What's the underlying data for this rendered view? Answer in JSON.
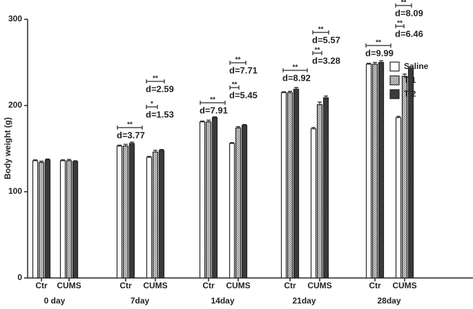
{
  "chart_data": {
    "type": "bar",
    "ylabel": "Body weight (g)",
    "categories": [
      "Ctr",
      "CUMS",
      "Ctr",
      "CUMS",
      "Ctr",
      "CUMS",
      "Ctr",
      "CUMS",
      "Ctr",
      "CUMS"
    ],
    "groups": [
      "0 day",
      "7day",
      "14day",
      "21day",
      "28day"
    ],
    "series": [
      {
        "name": "Saline",
        "color": "#ffffff",
        "values": [
          136,
          136,
          153,
          140,
          181,
          156,
          215,
          173,
          248,
          186
        ],
        "errors": [
          1,
          1,
          1,
          1,
          1,
          1,
          1,
          1.5,
          1,
          1.5
        ]
      },
      {
        "name": "T 1",
        "color": "#b0b0b0",
        "pattern": "checker",
        "values": [
          134,
          136,
          153,
          146,
          181,
          174,
          215,
          201,
          248,
          234
        ],
        "errors": [
          1.5,
          1.5,
          2,
          2,
          2,
          1.5,
          1.5,
          3,
          2,
          2.5
        ]
      },
      {
        "name": "T 2",
        "color": "#3a3a3a",
        "values": [
          137,
          135,
          156,
          148,
          186,
          177,
          219,
          209,
          250,
          243
        ],
        "errors": [
          1,
          1,
          1.5,
          1,
          1,
          1,
          2,
          2,
          2,
          2
        ]
      }
    ],
    "ylim": [
      0,
      300
    ],
    "yticks": [
      0,
      100,
      200,
      300
    ],
    "legend": "right",
    "annotations": [
      {
        "stars": "**",
        "label": "d=3.77"
      },
      {
        "stars": "*",
        "label": "d=1.53"
      },
      {
        "stars": "**",
        "label": "d=2.59"
      },
      {
        "stars": "**",
        "label": "d=7.91"
      },
      {
        "stars": "**",
        "label": "d=5.45"
      },
      {
        "stars": "**",
        "label": "d=7.71"
      },
      {
        "stars": "**",
        "label": "d=8.92"
      },
      {
        "stars": "**",
        "label": "d=3.28"
      },
      {
        "stars": "**",
        "label": "d=5.57"
      },
      {
        "stars": "**",
        "label": "d=9.99"
      },
      {
        "stars": "**",
        "label": "d=6.46"
      },
      {
        "stars": "**",
        "label": "d=8.09"
      }
    ]
  }
}
